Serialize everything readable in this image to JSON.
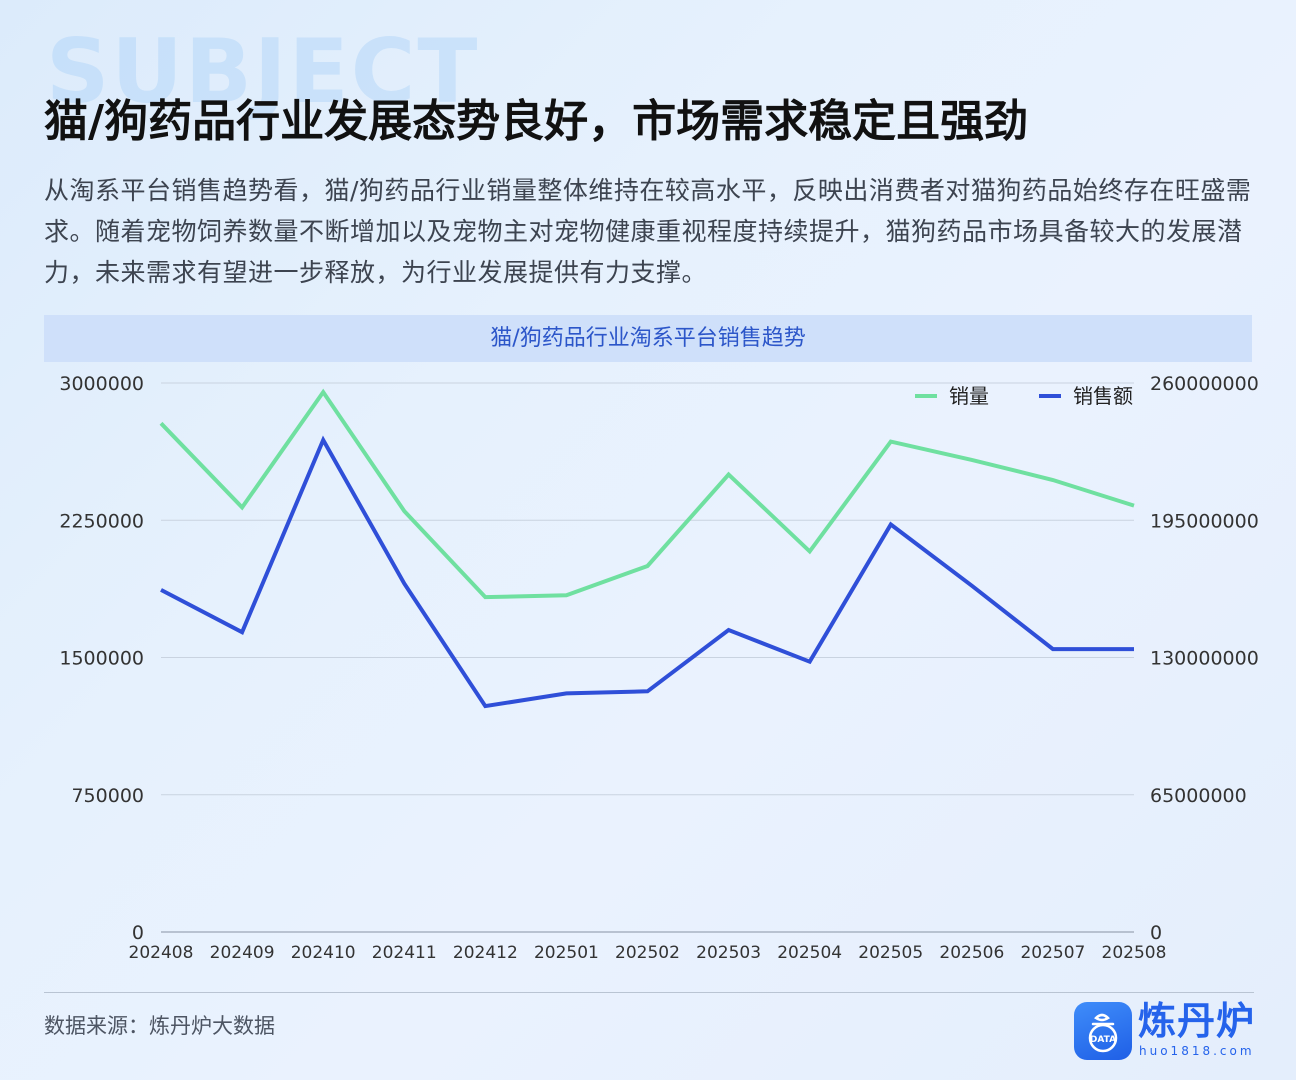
{
  "watermark": "SUBJECT",
  "title": "猫/狗药品行业发展态势良好，市场需求稳定且强劲",
  "description": "从淘系平台销售趋势看，猫/狗药品行业销量整体维持在较高水平，反映出消费者对猫狗药品始终存在旺盛需求。随着宠物饲养数量不断增加以及宠物主对宠物健康重视程度持续提升，猫狗药品市场具备较大的发展潜力，未来需求有望进一步释放，为行业发展提供有力支撑。",
  "source": "数据来源：炼丹炉大数据",
  "logo": {
    "name": "炼丹炉",
    "url": "huo1818.com",
    "badge": "DATA",
    "icon": "cauldron-icon"
  },
  "colors": {
    "sales_volume": "#6fe0a0",
    "sales_amount": "#2f4fd8",
    "brand": "#2563eb"
  },
  "chart_data": {
    "type": "line",
    "title": "猫/狗药品行业淘系平台销售趋势",
    "categories": [
      "202408",
      "202409",
      "202410",
      "202411",
      "202412",
      "202501",
      "202502",
      "202503",
      "202504",
      "202505",
      "202506",
      "202507",
      "202508"
    ],
    "series": [
      {
        "name": "销量",
        "axis": "left",
        "color": "#6fe0a0",
        "values": [
          2780000,
          2320000,
          2950000,
          2300000,
          1830000,
          1840000,
          2000000,
          2500000,
          2080000,
          2680000,
          2580000,
          2470000,
          2330000
        ]
      },
      {
        "name": "销售额",
        "axis": "right",
        "color": "#2f4fd8",
        "values": [
          162000000,
          142000000,
          233000000,
          165000000,
          107000000,
          113000000,
          114000000,
          143000000,
          128000000,
          193000000,
          164000000,
          134000000,
          134000000
        ]
      }
    ],
    "y_left": {
      "ylim": [
        0,
        3000000
      ],
      "ticks": [
        "0",
        "750000",
        "1500000",
        "2250000",
        "3000000"
      ]
    },
    "y_right": {
      "ylim": [
        0,
        260000000
      ],
      "ticks": [
        "0",
        "65000000",
        "130000000",
        "195000000",
        "260000000"
      ]
    },
    "grid": true,
    "legend_position": "top-right"
  }
}
